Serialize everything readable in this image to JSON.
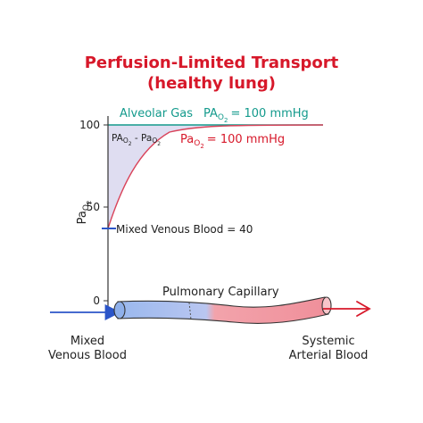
{
  "title": {
    "line1": "Perfusion-Limited Transport",
    "line2": "(healthy lung)"
  },
  "axis": {
    "y_label_main": "Pa",
    "y_label_sub": "O",
    "y_label_subsub": "2",
    "ticks": [
      {
        "value": 100,
        "label": "100"
      },
      {
        "value": 50,
        "label": "50"
      },
      {
        "value": 0,
        "label": "0"
      }
    ],
    "ylim": [
      0,
      100
    ]
  },
  "alveolar": {
    "label": "Alveolar Gas",
    "pressure_main": "PA",
    "pressure_sub": "O",
    "pressure_subsub": "2",
    "pressure_value": "= 100 mmHg",
    "value": 100
  },
  "arterial": {
    "pressure_main": "Pa",
    "pressure_sub": "O",
    "pressure_subsub": "2",
    "pressure_value": "= 100 mmHg"
  },
  "gradient": {
    "left_main": "PA",
    "left_sub": "O",
    "left_subsub": "2",
    "dash": " - ",
    "right_main": "Pa",
    "right_sub": "O",
    "right_subsub": "2"
  },
  "venous": {
    "label": "Mixed Venous Blood = 40",
    "value": 40
  },
  "capillary": {
    "label": "Pulmonary Capillary"
  },
  "ends": {
    "left_line1": "Mixed",
    "left_line2": "Venous Blood",
    "right_line1": "Systemic",
    "right_line2": "Arterial Blood"
  },
  "colors": {
    "title": "#d7182a",
    "alveolar": "#139a8c",
    "arterial": "#d7182a",
    "venous": "#2b55c8",
    "curve": "#d9435a",
    "shade": "#dcd9f0",
    "axis": "#333333",
    "vessel_blue": "#9ab8ee",
    "vessel_red": "#f2a3ab"
  }
}
